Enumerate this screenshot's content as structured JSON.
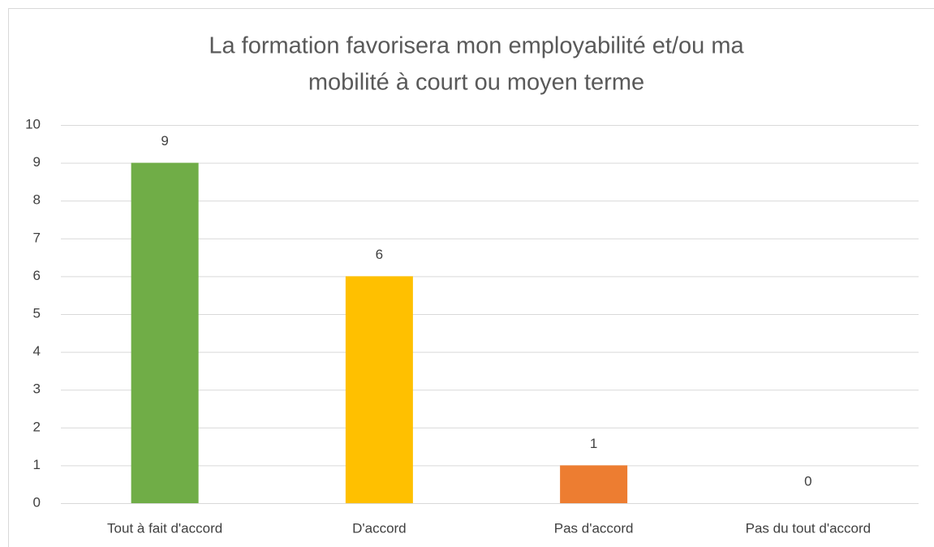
{
  "chart_data": {
    "type": "bar",
    "title": [
      "La formation favorisera mon employabilité et/ou ma",
      "mobilité à court ou moyen terme"
    ],
    "categories": [
      "Tout à fait d'accord",
      "D'accord",
      "Pas d'accord",
      "Pas du tout d'accord"
    ],
    "values": [
      9,
      6,
      1,
      0
    ],
    "colors": [
      "#70ad47",
      "#ffc000",
      "#ed7d31",
      "#a5a5a5"
    ],
    "ylim": [
      0,
      10
    ],
    "yticks": [
      0,
      1,
      2,
      3,
      4,
      5,
      6,
      7,
      8,
      9,
      10
    ],
    "grid": true
  }
}
